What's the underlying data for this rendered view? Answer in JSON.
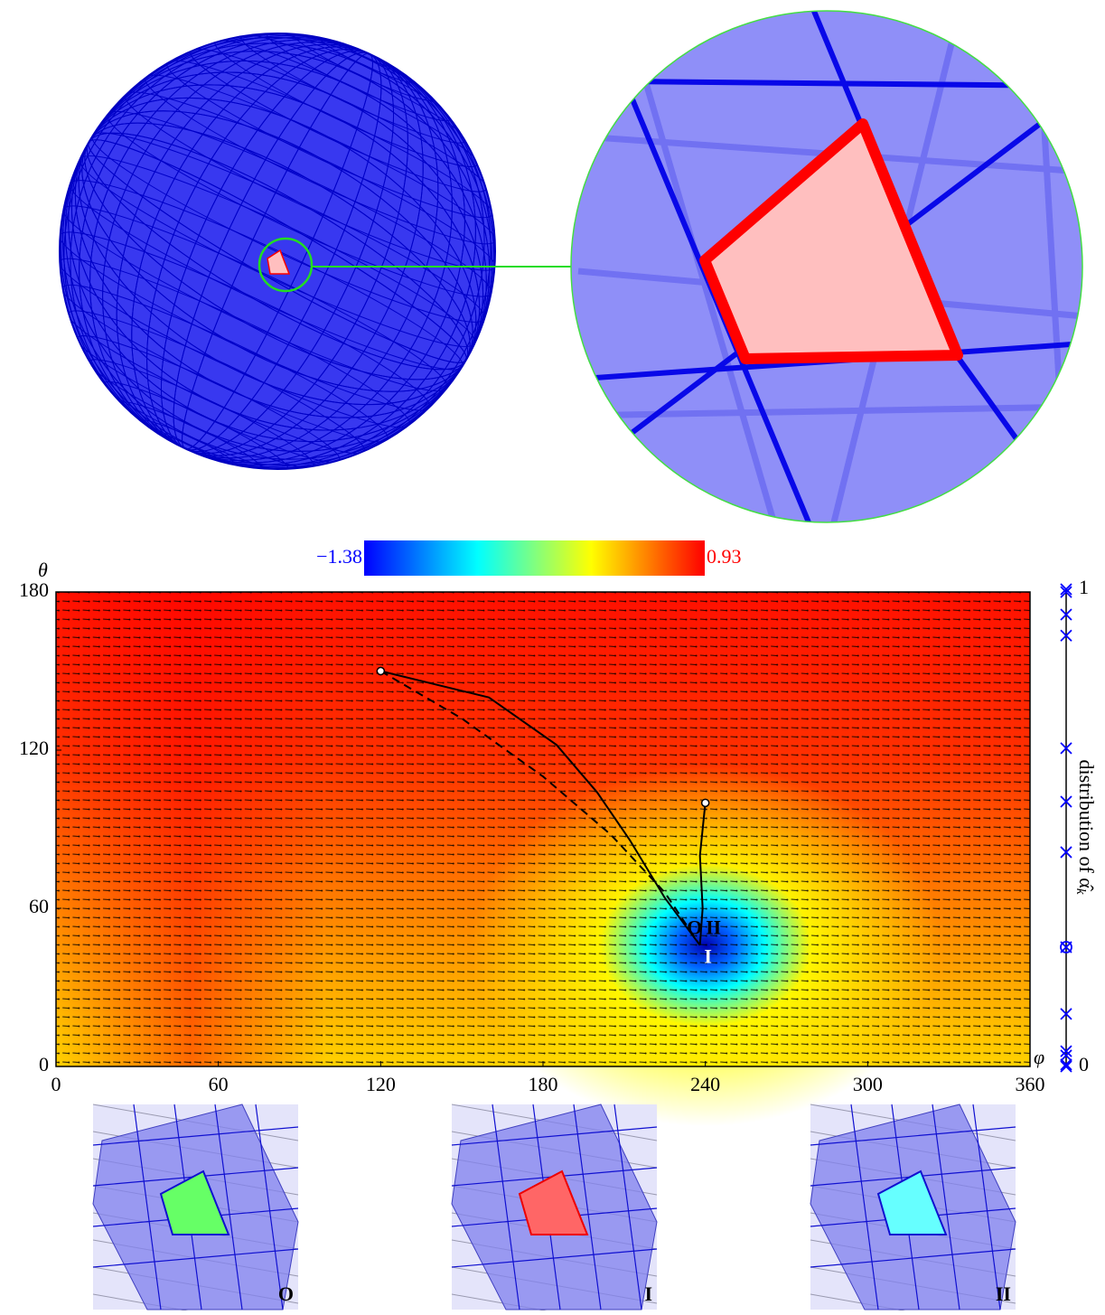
{
  "chart_data": [
    {
      "type": "vector-field",
      "xlabel": "φ",
      "ylabel": "θ",
      "xlim": [
        0,
        360
      ],
      "ylim": [
        0,
        180
      ],
      "xticks": [
        0,
        60,
        120,
        180,
        240,
        300,
        360
      ],
      "yticks": [
        0,
        60,
        120,
        180
      ],
      "colorbar": {
        "colors": [
          "#0000ff",
          "#00ffff",
          "#ffff00",
          "#ff0000"
        ],
        "ticks": [
          {
            "value": -1.38,
            "label": "−1.38",
            "color": "#0000ff"
          },
          {
            "value": 0.93,
            "label": "0.93",
            "color": "#ff0000"
          }
        ]
      },
      "series": [
        {
          "style": "solid",
          "color": "#000000",
          "x": [
            120,
            160,
            185,
            200,
            212,
            225,
            238
          ],
          "y": [
            150,
            140,
            122,
            104,
            86,
            64,
            46
          ]
        },
        {
          "style": "dashed",
          "color": "#000000",
          "x": [
            120,
            150,
            180,
            205,
            225,
            238
          ],
          "y": [
            150,
            132,
            110,
            88,
            66,
            46
          ]
        },
        {
          "style": "solid",
          "color": "#000000",
          "x": [
            240,
            238,
            239,
            238
          ],
          "y": [
            100,
            80,
            60,
            46
          ]
        }
      ],
      "annotations": [
        {
          "text": "O",
          "x": 236,
          "y": 52,
          "color": "#000000"
        },
        {
          "text": "II",
          "x": 243,
          "y": 52,
          "color": "#000000"
        },
        {
          "text": "I",
          "x": 241,
          "y": 41,
          "color": "#ffffff"
        }
      ]
    },
    {
      "type": "strip",
      "ylabel": "distribution of α̂",
      "ylabel_sub": "k",
      "ylim": [
        0,
        1
      ],
      "yticks": [
        0,
        1
      ],
      "series": [
        {
          "marker": "x",
          "color": "#0000ff",
          "values": [
            1.0,
            0.994,
            0.947,
            0.903,
            0.667,
            0.555,
            0.449,
            0.25,
            0.11,
            0.032,
            0.023,
            0.004,
            0
          ]
        },
        {
          "marker": "circle",
          "color": "#0000ff",
          "values": [
            0.25
          ]
        }
      ]
    }
  ],
  "thumbnails": [
    {
      "label": "O",
      "color": "#66ff66"
    },
    {
      "label": "I",
      "color": "#ff6666"
    },
    {
      "label": "II",
      "color": "#66ffff"
    }
  ]
}
